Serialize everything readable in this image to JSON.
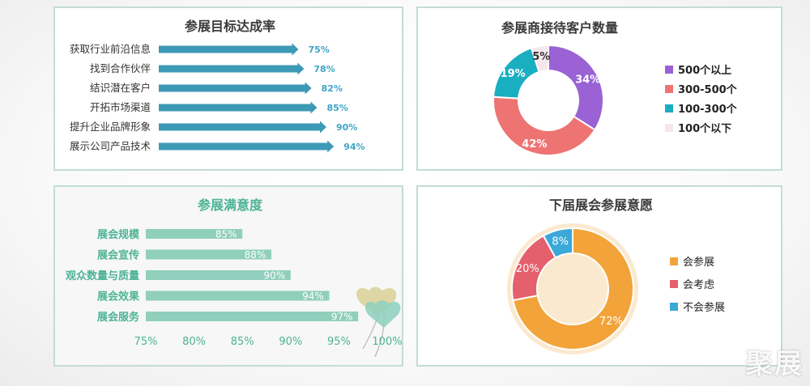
{
  "colors": {
    "teal_bar": "#3d9ab6",
    "green_bar": "#8fcfbb",
    "purple": "#9a62d4",
    "salmon": "#ee7474",
    "cyan": "#1aaec1",
    "pink": "#f7e6ec",
    "orange": "#f2a43a",
    "red4": "#e4606c",
    "blue4": "#3ba8d8"
  },
  "chart_data": [
    {
      "type": "bar",
      "title": "参展目标达成率",
      "categories": [
        "获取行业前沿信息",
        "找到合作伙伴",
        "结识潜在客户",
        "开拓市场渠道",
        "提升企业品牌形象",
        "展示公司产品技术"
      ],
      "values": [
        75,
        78,
        82,
        85,
        90,
        94
      ],
      "value_labels": [
        "75%",
        "78%",
        "82%",
        "85%",
        "90%",
        "94%"
      ],
      "orientation": "horizontal",
      "xlim": [
        0,
        100
      ]
    },
    {
      "type": "pie",
      "title": "参展商接待客户数量",
      "labels": [
        "500个以上",
        "300-500个",
        "100-300个",
        "100个以下"
      ],
      "values": [
        34,
        42,
        19,
        5
      ],
      "value_labels": [
        "34%",
        "42%",
        "19%",
        "5%"
      ],
      "donut": true,
      "legend": "right"
    },
    {
      "type": "bar",
      "title": "参展满意度",
      "categories": [
        "展会规模",
        "展会宣传",
        "观众数量与质量",
        "展会效果",
        "展会服务"
      ],
      "values": [
        85,
        88,
        90,
        94,
        97
      ],
      "value_labels": [
        "85%",
        "88%",
        "90%",
        "94%",
        "97%"
      ],
      "orientation": "horizontal",
      "xlim": [
        75,
        100
      ],
      "xticks": [
        "75%",
        "80%",
        "85%",
        "90%",
        "95%",
        "100%"
      ]
    },
    {
      "type": "pie",
      "title": "下届展会参展意愿",
      "labels": [
        "会参展",
        "会考虑",
        "不会参展"
      ],
      "values": [
        72,
        20,
        8
      ],
      "value_labels": [
        "72%",
        "20%",
        "8%"
      ],
      "donut": true,
      "legend": "right"
    }
  ],
  "watermark": "聚展"
}
